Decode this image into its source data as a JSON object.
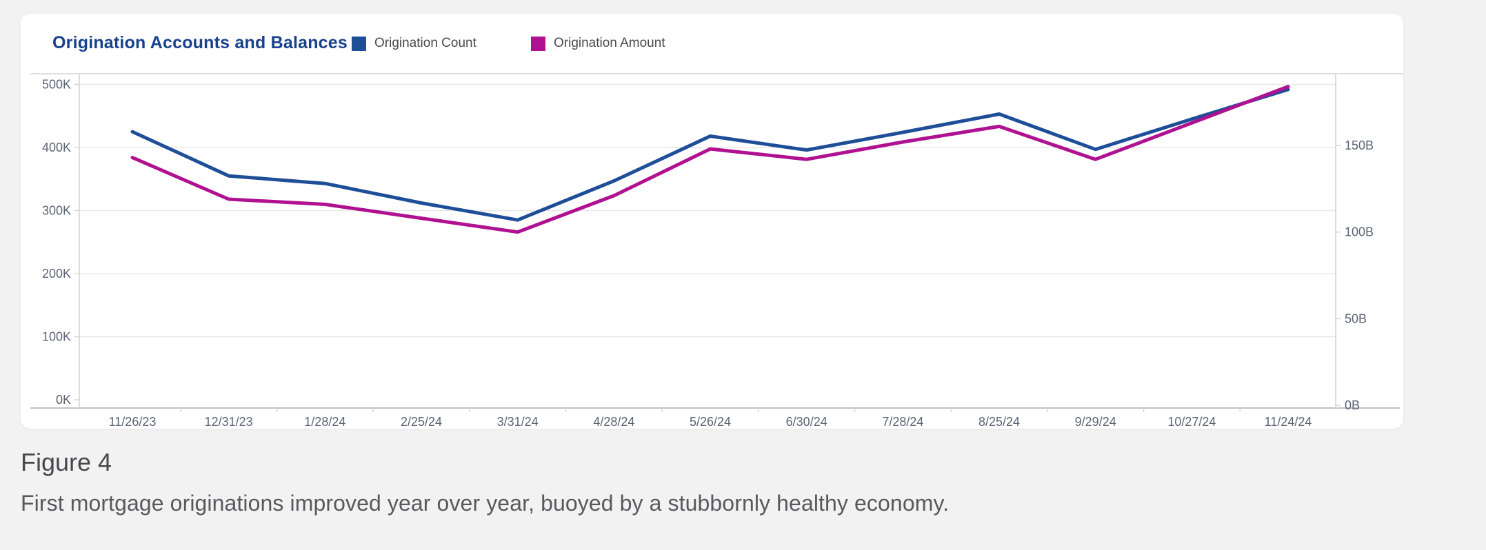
{
  "page": {
    "background": "#f2f2f3",
    "card_background": "#ffffff"
  },
  "header": {
    "title": "Origination Accounts and Balances",
    "title_color": "#17418c",
    "legend": [
      {
        "label": "Origination Count",
        "color": "#1f4e99"
      },
      {
        "label": "Origination Amount",
        "color": "#b01190"
      }
    ]
  },
  "chart_data": {
    "type": "line",
    "title": "Origination Accounts and Balances",
    "grid": true,
    "legend_position": "top",
    "x_labels": [
      "11/26/23",
      "12/31/23",
      "1/28/24",
      "2/25/24",
      "3/31/24",
      "4/28/24",
      "5/26/24",
      "6/30/24",
      "7/28/24",
      "8/25/24",
      "9/29/24",
      "10/27/24",
      "11/24/24"
    ],
    "y_left": {
      "title": "",
      "unit": "thousands",
      "tick_labels": [
        "0K",
        "100K",
        "200K",
        "300K",
        "400K",
        "500K"
      ],
      "tick_values": [
        0,
        100,
        200,
        300,
        400,
        500
      ],
      "range_shown": [
        0,
        517
      ]
    },
    "y_right": {
      "title": "",
      "unit": "billions",
      "tick_labels": [
        "0B",
        "50B",
        "100B",
        "150B"
      ],
      "tick_values": [
        0,
        50,
        100,
        150
      ],
      "range_shown": [
        0,
        191
      ]
    },
    "series": [
      {
        "name": "Origination Count",
        "axis": "left",
        "unit": "thousands",
        "color": "#1f4e99",
        "values": [
          425,
          355,
          343,
          312,
          285,
          347,
          418,
          396,
          424,
          453,
          397,
          445,
          492
        ]
      },
      {
        "name": "Origination Amount",
        "axis": "right",
        "unit": "billions",
        "color": "#b01190",
        "values": [
          143,
          119,
          116,
          108,
          100,
          121,
          148,
          142,
          152,
          161,
          142,
          163,
          184
        ]
      }
    ],
    "colors": {
      "gridline": "#e7e7e7",
      "axis_line": "#d4d4d4",
      "bottom_line": "#c2c2c2",
      "tick_label": "#5b6474"
    }
  },
  "figure": {
    "label": "Figure 4",
    "caption": "First mortgage originations improved year over year, buoyed by a stubbornly healthy economy."
  }
}
